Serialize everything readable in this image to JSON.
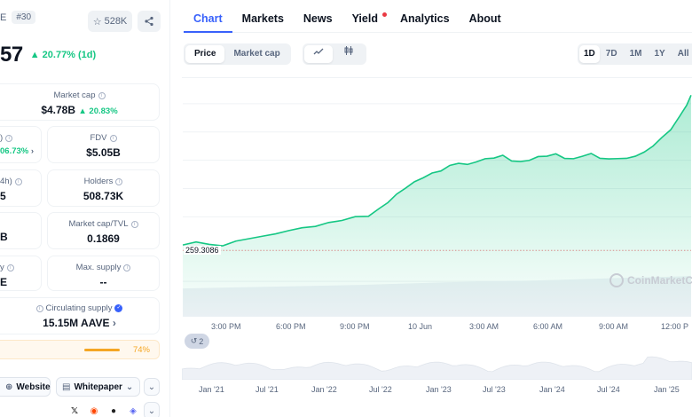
{
  "header": {
    "name_fragment": "E",
    "rank": "#30",
    "watchlist_count": "528K",
    "price_fragment": "57",
    "price_change": "20.77% (1d)"
  },
  "stats": {
    "market_cap": {
      "label": "Market cap",
      "value": "$4.78B",
      "change": "20.83%"
    },
    "row2_left": {
      "label_fragment": ")",
      "change_fragment": "06.73%"
    },
    "fdv": {
      "label": "FDV",
      "value": "$5.05B"
    },
    "row3_left": {
      "label_fragment": "4h)",
      "value_fragment": "5"
    },
    "holders": {
      "label": "Holders",
      "value": "508.73K"
    },
    "row4_left": {
      "value_fragment": "B"
    },
    "mcap_tvl": {
      "label": "Market cap/TVL",
      "value": "0.1869"
    },
    "row5_left": {
      "label_fragment": "y",
      "value_fragment": "E"
    },
    "max_supply": {
      "label": "Max. supply",
      "value": "--"
    },
    "circulating": {
      "label": "Circulating supply",
      "value": "15.15M AAVE"
    },
    "supply_pct": "74%"
  },
  "links": {
    "website": "Website",
    "whitepaper": "Whitepaper"
  },
  "tabs": [
    "Chart",
    "Markets",
    "News",
    "Yield",
    "Analytics",
    "About"
  ],
  "chart_type_toggle": [
    "Price",
    "Market cap"
  ],
  "ranges": [
    "1D",
    "7D",
    "1M",
    "1Y",
    "All"
  ],
  "chart": {
    "reference_value": "259.3086",
    "x_labels": [
      "3:00 PM",
      "6:00 PM",
      "9:00 PM",
      "10 Jun",
      "3:00 AM",
      "6:00 AM",
      "9:00 AM",
      "12:00 P"
    ],
    "watermark": "CoinMarketC",
    "events_count": "2",
    "overview_labels": [
      "Jan '21",
      "Jul '21",
      "Jan '22",
      "Jul '22",
      "Jan '23",
      "Jul '23",
      "Jan '24",
      "Jul '24",
      "Jan '25"
    ]
  },
  "colors": {
    "accent": "#3861fb",
    "up": "#16c784",
    "down": "#ea3943",
    "warning": "#f5a623"
  }
}
